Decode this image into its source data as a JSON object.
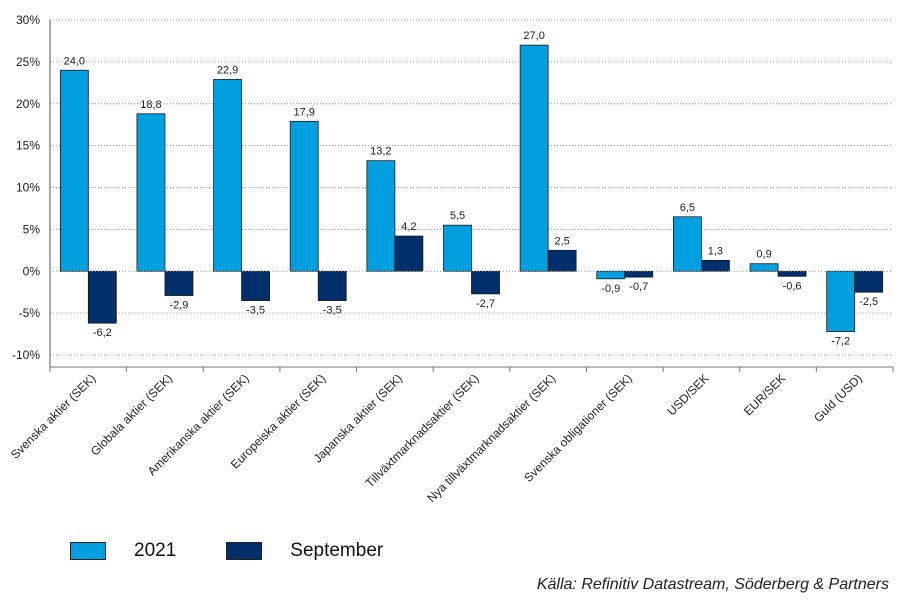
{
  "chart_data": {
    "type": "bar",
    "categories": [
      "Svenska aktier (SEK)",
      "Globala aktier (SEK)",
      "Amerikanska aktier (SEK)",
      "Europeiska aktier (SEK)",
      "Japanska aktier (SEK)",
      "Tillväxtmarknadsaktier (SEK)",
      "Nya tillväxtmarknadsaktier (SEK)",
      "Svenska obligationer (SEK)",
      "USD/SEK",
      "EUR/SEK",
      "Guld (USD)"
    ],
    "series": [
      {
        "name": "2021",
        "color": "#009FDF",
        "values": [
          24.0,
          18.8,
          22.9,
          17.9,
          13.2,
          5.5,
          27.0,
          -0.9,
          6.5,
          0.9,
          -7.2
        ],
        "labels": [
          "24,0",
          "18,8",
          "22,9",
          "17,9",
          "13,2",
          "5,5",
          "27,0",
          "-0,9",
          "6,5",
          "0,9",
          "-7,2"
        ]
      },
      {
        "name": "September",
        "color": "#002F6C",
        "values": [
          -6.2,
          -2.9,
          -3.5,
          -3.5,
          4.2,
          -2.7,
          2.5,
          -0.7,
          1.3,
          -0.6,
          -2.5
        ],
        "labels": [
          "-6,2",
          "-2,9",
          "-3,5",
          "-3,5",
          "4,2",
          "-2,7",
          "2,5",
          "-0,7",
          "1,3",
          "-0,6",
          "-2,5"
        ]
      }
    ],
    "ylim": [
      -10,
      30
    ],
    "yticks": [
      -10,
      -5,
      0,
      5,
      10,
      15,
      20,
      25,
      30
    ],
    "ytick_labels": [
      "-10%",
      "-5%",
      "0%",
      "5%",
      "10%",
      "15%",
      "20%",
      "25%",
      "30%"
    ],
    "grid": "horizontal dotted",
    "legend": "bottom-left"
  },
  "source": "Källa: Refinitiv Datastream, Söderberg & Partners"
}
